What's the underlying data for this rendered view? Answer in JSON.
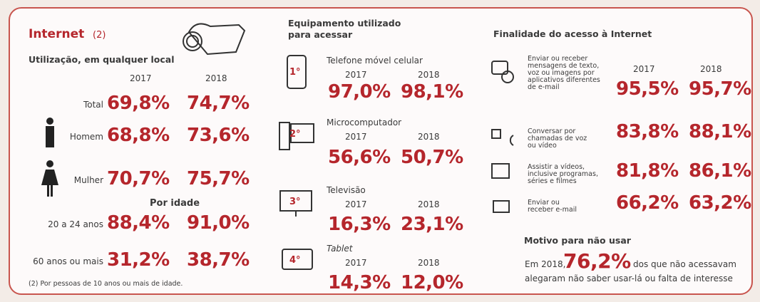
{
  "internet": {
    "title": "Internet",
    "note_ref": "(2)",
    "subtitle": "Utilização, em qualquer local",
    "years": [
      "2017",
      "2018"
    ],
    "rows": [
      {
        "label": "Total",
        "v2017": "69,8%",
        "v2018": "74,7%"
      },
      {
        "label": "Homem",
        "v2017": "68,8%",
        "v2018": "73,6%"
      },
      {
        "label": "Mulher",
        "v2017": "70,7%",
        "v2018": "75,7%"
      }
    ],
    "age_title": "Por idade",
    "age_rows": [
      {
        "label": "20 a 24 anos",
        "v2017": "88,4%",
        "v2018": "91,0%"
      },
      {
        "label": "60 anos ou mais",
        "v2017": "31,2%",
        "v2018": "38,7%"
      }
    ],
    "footnote": "(2) Por pessoas de 10 anos ou mais de idade."
  },
  "equipment": {
    "title": [
      "Equipamento utilizado",
      "para acessar"
    ],
    "items": [
      {
        "rank": "1°",
        "label": "Telefone móvel celular",
        "years": [
          "2017",
          "2018"
        ],
        "v2017": "97,0%",
        "v2018": "98,1%"
      },
      {
        "rank": "2°",
        "label": "Microcomputador",
        "years": [
          "2017",
          "2018"
        ],
        "v2017": "56,6%",
        "v2018": "50,7%"
      },
      {
        "rank": "3°",
        "label": "Televisão",
        "years": [
          "2017",
          "2018"
        ],
        "v2017": "16,3%",
        "v2018": "23,1%"
      },
      {
        "rank": "4°",
        "label": "Tablet",
        "years": [
          "2017",
          "2018"
        ],
        "v2017": "14,3%",
        "v2018": "12,0%"
      }
    ]
  },
  "purpose": {
    "title": "Finalidade do acesso à Internet",
    "years": [
      "2017",
      "2018"
    ],
    "items": [
      {
        "lines": [
          "Enviar ou receber",
          "mensagens de texto,",
          "voz ou imagens por",
          "aplicativos diferentes",
          "de e-mail"
        ],
        "v2017": "95,5%",
        "v2018": "95,7%"
      },
      {
        "lines": [
          "Conversar por",
          "chamadas de voz",
          "ou vídeo"
        ],
        "v2017": "83,8%",
        "v2018": "88,1%"
      },
      {
        "lines": [
          "Assistir a vídeos,",
          "inclusive programas,",
          "séries e filmes"
        ],
        "v2017": "81,8%",
        "v2018": "86,1%"
      },
      {
        "lines": [
          "Enviar ou",
          "receber e-mail"
        ],
        "v2017": "66,2%",
        "v2018": "63,2%"
      }
    ]
  },
  "reason": {
    "title": "Motivo para não usar",
    "prefix": "Em 2018,",
    "value": "76,2%",
    "suffix": "dos que não acessavam",
    "line2": "alegaram não saber usar-lá ou falta de interesse"
  }
}
